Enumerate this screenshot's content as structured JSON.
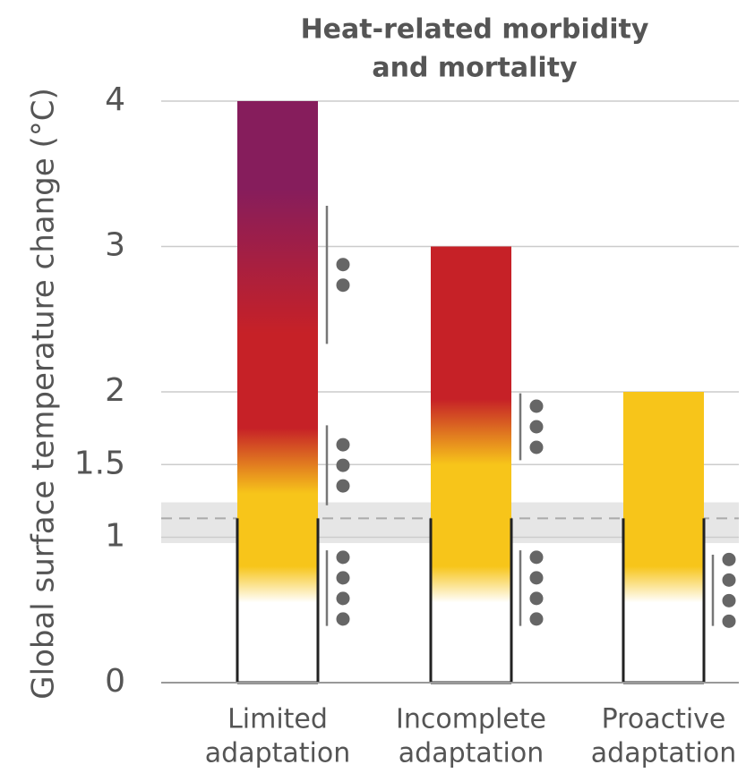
{
  "chart_data": {
    "type": "ember",
    "title": [
      "Heat-related morbidity",
      "and mortality"
    ],
    "y_label": "Global surface temperature change (°C)",
    "categories": [
      [
        "Limited",
        "adaptation"
      ],
      [
        "Incomplete",
        "adaptation"
      ],
      [
        "Proactive",
        "adaptation"
      ]
    ],
    "ylim": [
      0,
      4
    ],
    "yticks": [
      0,
      1,
      1.5,
      2,
      3,
      4
    ],
    "grid": true,
    "observed_warming": {
      "value": 1.13,
      "range": [
        0.96,
        1.24
      ]
    },
    "bars": [
      {
        "top": 4,
        "stops": [
          [
            0.55,
            "#ffffff"
          ],
          [
            0.8,
            "#f7c51a"
          ],
          [
            1.3,
            "#f7c51a"
          ],
          [
            1.75,
            "#c62127"
          ],
          [
            2.4,
            "#c62127"
          ],
          [
            3.4,
            "#861d5c"
          ]
        ],
        "confidence": [
          {
            "range": [
              2.33,
              3.28
            ],
            "dots": 2
          },
          {
            "range": [
              1.22,
              1.77
            ],
            "dots": 3
          },
          {
            "range": [
              0.39,
              0.91
            ],
            "dots": 4
          }
        ]
      },
      {
        "top": 3,
        "stops": [
          [
            0.55,
            "#ffffff"
          ],
          [
            0.8,
            "#f7c51a"
          ],
          [
            1.5,
            "#f7c51a"
          ],
          [
            1.95,
            "#c62127"
          ]
        ],
        "confidence": [
          {
            "range": [
              1.53,
              1.99
            ],
            "dots": 3
          },
          {
            "range": [
              0.39,
              0.91
            ],
            "dots": 4
          }
        ]
      },
      {
        "top": 2,
        "stops": [
          [
            0.55,
            "#ffffff"
          ],
          [
            0.8,
            "#f7c51a"
          ]
        ],
        "confidence": [
          {
            "range": [
              0.39,
              0.88
            ],
            "dots": 4
          }
        ]
      }
    ]
  }
}
